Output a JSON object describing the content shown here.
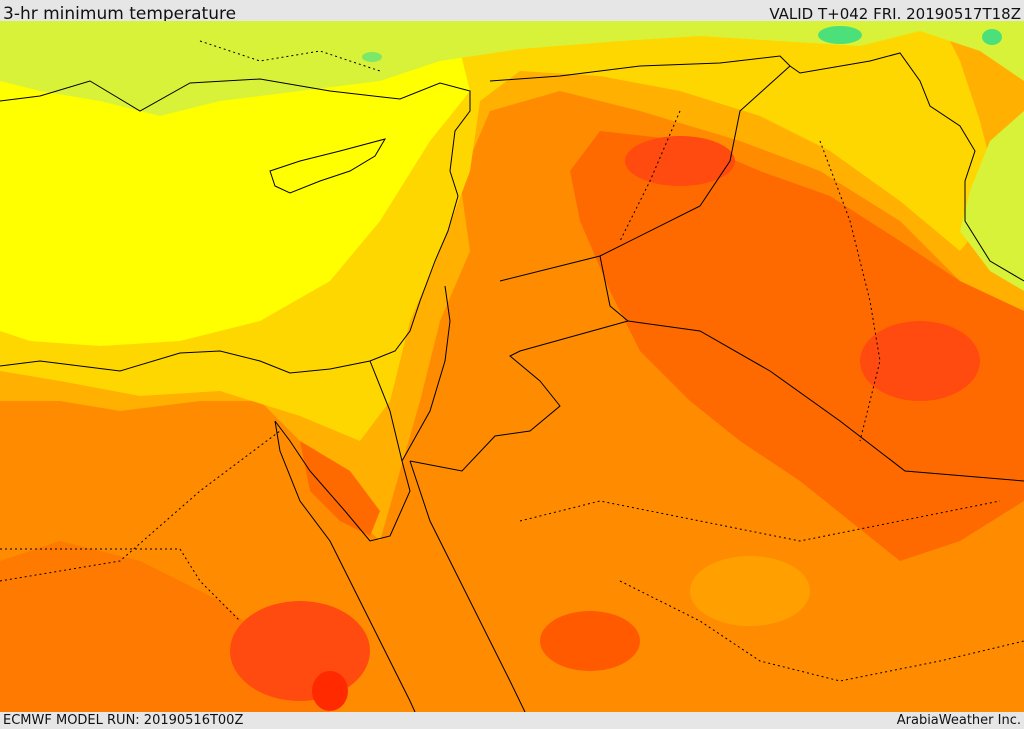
{
  "header": {
    "title": "3-hr minimum temperature",
    "valid": "VALID T+042 FRI. 20190517T18Z"
  },
  "footer": {
    "model_run": "ECMWF MODEL RUN: 20190516T00Z",
    "credit": "ArabiaWeather Inc."
  },
  "map": {
    "variable": "3-hr minimum temperature",
    "palette": {
      "cool_green": "#4be07a",
      "yellow_green": "#d8f23a",
      "yellow": "#ffff00",
      "gold": "#ffd700",
      "amber": "#ffb000",
      "orange": "#ff8c00",
      "dark_orange": "#ff6a00",
      "red_orange": "#ff4a10",
      "red": "#ff2a00"
    }
  }
}
